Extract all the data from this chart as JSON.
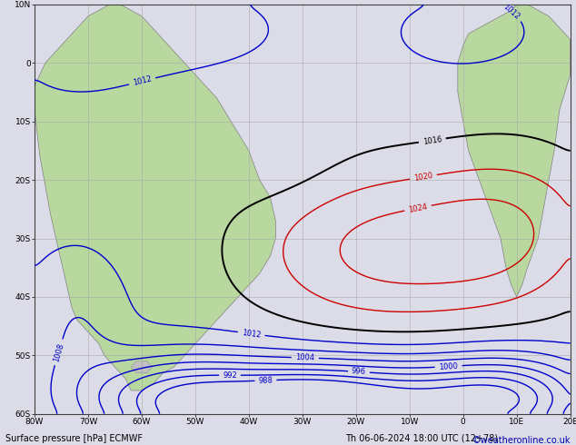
{
  "title_left": "Surface pressure [hPa] ECMWF",
  "title_right": "Th 06-06-2024 18:00 UTC (12+78)",
  "copyright": "©weatheronline.co.uk",
  "ocean_color": "#dcdce8",
  "land_color": "#b8d8a0",
  "grid_color": "#a8a8a8",
  "figsize": [
    6.34,
    4.9
  ],
  "dpi": 100,
  "lon_min": -80,
  "lon_max": 20,
  "lat_min": -60,
  "lat_max": 10,
  "contour_low_color": "#0000cc",
  "contour_high_color": "#cc0000",
  "contour_normal_color": "#000000"
}
